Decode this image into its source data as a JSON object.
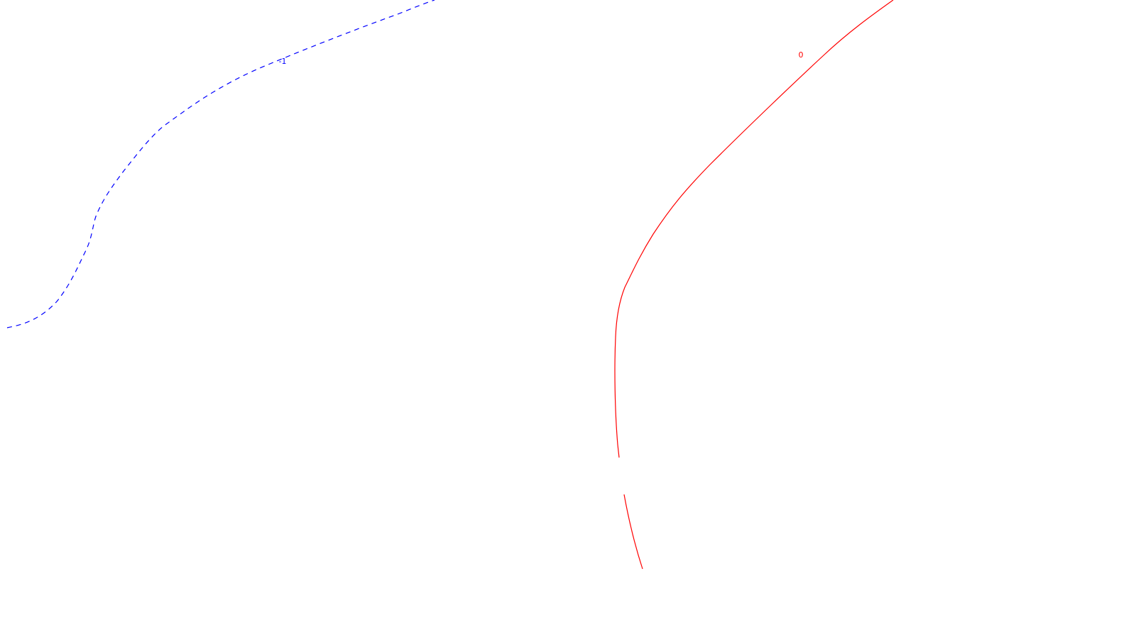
{
  "map": {
    "background_color": "#ffffff",
    "contours": [
      {
        "id": "contour-minus-1",
        "level_label": "-1",
        "color": "#0000ff",
        "line_style": "dashed"
      },
      {
        "id": "contour-zero",
        "level_label": "0",
        "color": "#ff0000",
        "line_style": "solid"
      }
    ]
  }
}
